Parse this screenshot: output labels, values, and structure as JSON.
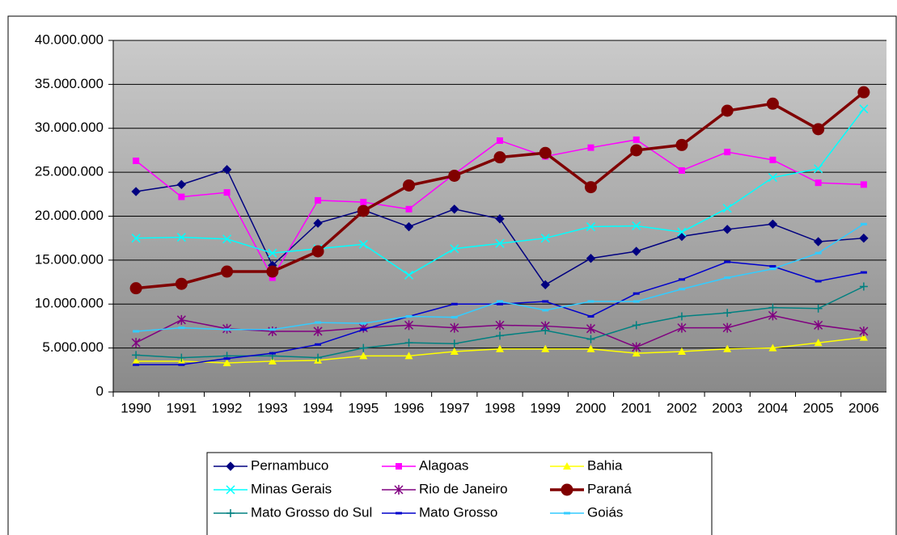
{
  "chart_data": {
    "type": "line",
    "categories": [
      "1990",
      "1991",
      "1992",
      "1993",
      "1994",
      "1995",
      "1996",
      "1997",
      "1998",
      "1999",
      "2000",
      "2001",
      "2002",
      "2003",
      "2004",
      "2005",
      "2006"
    ],
    "ylim": [
      0,
      40000000
    ],
    "yticks": [
      0,
      {
        "value": 5000000,
        "label": "5.000.000"
      },
      {
        "value": 10000000,
        "label": "10.000.000"
      },
      {
        "value": 15000000,
        "label": "15.000.000"
      },
      {
        "value": 20000000,
        "label": "20.000.000"
      },
      {
        "value": 25000000,
        "label": "25.000.000"
      },
      {
        "value": 30000000,
        "label": "30.000.000"
      },
      {
        "value": 35000000,
        "label": "35.000.000"
      },
      {
        "value": 40000000,
        "label": "40.000.000"
      }
    ],
    "grid": true,
    "legend": "bottom",
    "series": [
      {
        "name": "Pernambuco",
        "color": "#000080",
        "marker": "diamond",
        "values": [
          22800000,
          23600000,
          25300000,
          14400000,
          19200000,
          20700000,
          18800000,
          20800000,
          19700000,
          12200000,
          15200000,
          16000000,
          17700000,
          18500000,
          19100000,
          17100000,
          17500000
        ]
      },
      {
        "name": "Alagoas",
        "color": "#ff00ff",
        "marker": "square",
        "values": [
          26300000,
          22200000,
          22700000,
          13000000,
          21800000,
          21600000,
          20800000,
          24800000,
          28600000,
          26800000,
          27800000,
          28700000,
          25200000,
          27300000,
          26400000,
          23800000,
          23600000
        ]
      },
      {
        "name": "Bahia",
        "color": "#ffff00",
        "marker": "triangle",
        "values": [
          3500000,
          3500000,
          3300000,
          3500000,
          3600000,
          4100000,
          4100000,
          4600000,
          4900000,
          4900000,
          4900000,
          4400000,
          4600000,
          4900000,
          5000000,
          5600000,
          6200000
        ]
      },
      {
        "name": "Minas Gerais",
        "color": "#00ffff",
        "marker": "x",
        "values": [
          17500000,
          17600000,
          17400000,
          15800000,
          16300000,
          16800000,
          13300000,
          16300000,
          16900000,
          17500000,
          18800000,
          18900000,
          18200000,
          20900000,
          24400000,
          25400000,
          32200000
        ]
      },
      {
        "name": "Rio de Janeiro",
        "color": "#800080",
        "marker": "star",
        "values": [
          5600000,
          8200000,
          7200000,
          6900000,
          6900000,
          7300000,
          7600000,
          7300000,
          7600000,
          7500000,
          7200000,
          5100000,
          7300000,
          7300000,
          8700000,
          7600000,
          6900000
        ]
      },
      {
        "name": "Paraná",
        "color": "#800000",
        "marker": "circle",
        "values": [
          11800000,
          12300000,
          13700000,
          13700000,
          16000000,
          20600000,
          23500000,
          24600000,
          26700000,
          27200000,
          23300000,
          27500000,
          28100000,
          32000000,
          32800000,
          29900000,
          34100000
        ]
      },
      {
        "name": "Mato Grosso do Sul",
        "color": "#008080",
        "marker": "plus",
        "values": [
          4200000,
          3900000,
          4100000,
          4100000,
          3900000,
          5000000,
          5600000,
          5500000,
          6400000,
          7000000,
          6000000,
          7600000,
          8600000,
          9000000,
          9600000,
          9500000,
          12000000
        ]
      },
      {
        "name": "Mato Grosso",
        "color": "#0000cc",
        "marker": "dash",
        "values": [
          3100000,
          3100000,
          3800000,
          4400000,
          5400000,
          7100000,
          8600000,
          10000000,
          10000000,
          10300000,
          8600000,
          11200000,
          12800000,
          14800000,
          14300000,
          12600000,
          13600000
        ]
      },
      {
        "name": "Goiás",
        "color": "#33ccff",
        "marker": "dash",
        "values": [
          6900000,
          7300000,
          7100000,
          7100000,
          7900000,
          7800000,
          8600000,
          8500000,
          10300000,
          9300000,
          10300000,
          10300000,
          11700000,
          13000000,
          14000000,
          15800000,
          19100000
        ]
      }
    ]
  }
}
